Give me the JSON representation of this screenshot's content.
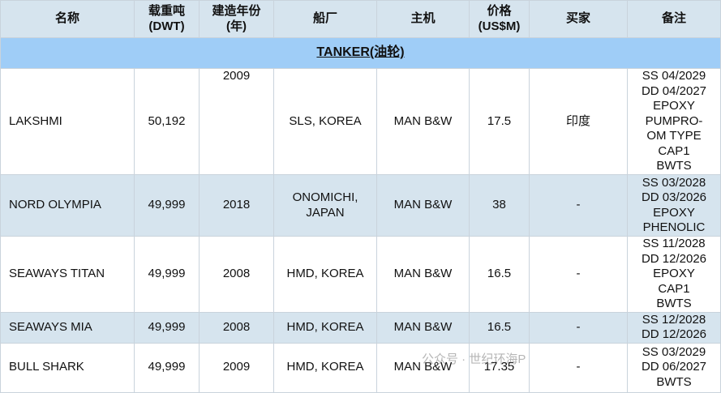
{
  "title": "TANKER(油轮)",
  "table": {
    "header": [
      [
        "名称"
      ],
      [
        "载重吨",
        "(DWT)"
      ],
      [
        "建造年份",
        "(年)"
      ],
      [
        "船厂"
      ],
      [
        "主机"
      ],
      [
        "价格",
        "(US$M)"
      ],
      [
        "买家"
      ],
      [
        "备注"
      ]
    ],
    "rows": [
      [
        [
          "LAKSHMI"
        ],
        [
          "50,192"
        ],
        [
          "2009"
        ],
        [
          "SLS, KOREA"
        ],
        [
          "MAN B&W"
        ],
        [
          "17.5"
        ],
        [
          "印度"
        ],
        [
          "SS 04/2029",
          "DD 04/2027",
          "EPOXY",
          "PUMPRO-",
          "OM TYPE",
          "CAP1",
          "BWTS"
        ]
      ],
      [
        [
          "NORD OLYMPIA"
        ],
        [
          "49,999"
        ],
        [
          "2018"
        ],
        [
          "ONOMICHI,",
          "JAPAN"
        ],
        [
          "MAN B&W"
        ],
        [
          "38"
        ],
        [
          "-"
        ],
        [
          "SS 03/2028",
          "DD 03/2026",
          "EPOXY",
          "PHENOLIC"
        ]
      ],
      [
        [
          "SEAWAYS TITAN"
        ],
        [
          "49,999"
        ],
        [
          "2008"
        ],
        [
          "HMD, KOREA"
        ],
        [
          "MAN B&W"
        ],
        [
          "16.5"
        ],
        [
          "-"
        ],
        [
          "SS 11/2028",
          "DD 12/2026",
          "EPOXY",
          "CAP1",
          "BWTS"
        ]
      ],
      [
        [
          "SEAWAYS MIA"
        ],
        [
          "49,999"
        ],
        [
          "2008"
        ],
        [
          "HMD, KOREA"
        ],
        [
          "MAN B&W"
        ],
        [
          "16.5"
        ],
        [
          "-"
        ],
        [
          "SS 12/2028",
          "DD 12/2026"
        ]
      ],
      [
        [
          "BULL SHARK"
        ],
        [
          "49,999"
        ],
        [
          "2009"
        ],
        [
          "HMD, KOREA"
        ],
        [
          "MAN B&W"
        ],
        [
          "17.35"
        ],
        [
          "-"
        ],
        [
          "SS 03/2029",
          "DD 06/2027",
          "BWTS"
        ]
      ]
    ]
  },
  "watermark": "公众号 · 世纪环海P"
}
